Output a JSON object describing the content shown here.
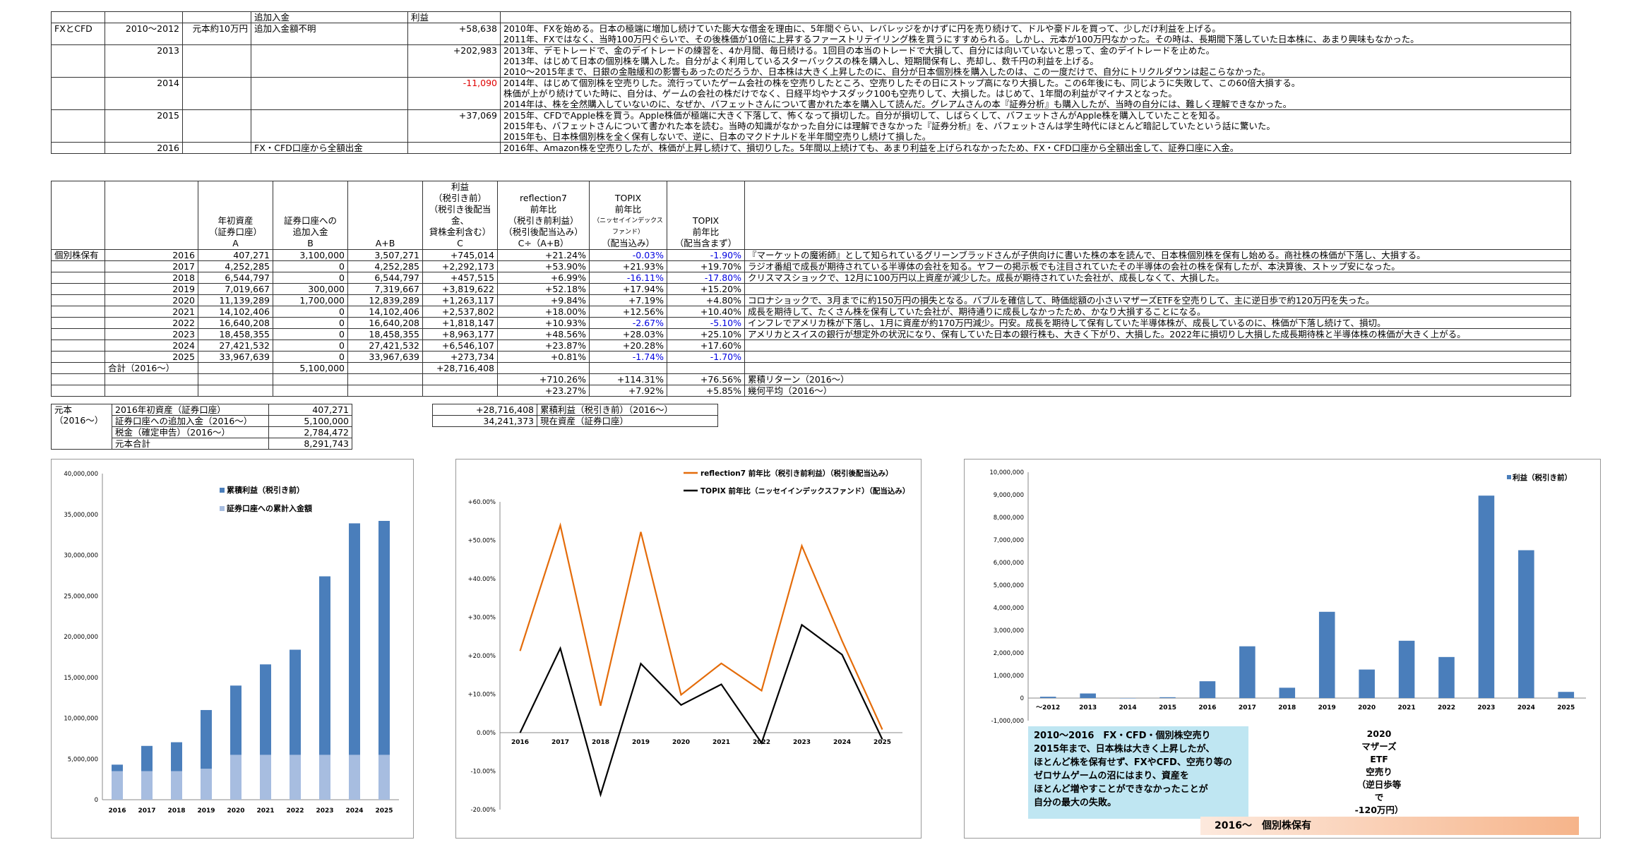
{
  "top_table": {
    "headers": {
      "add_money": "追加入金",
      "profit": "利益"
    },
    "rows": [
      {
        "label": "FXとCFD",
        "period": "2010～2012",
        "capital": "元本約10万円",
        "add": "追加入金額不明",
        "profit": "+58,638",
        "neg": false,
        "notes": [
          "2010年、FXを始める。日本の極端に増加し続けていた膨大な借金を理由に、5年間ぐらい、レバレッジをかけずに円を売り続けて、ドルや豪ドルを買って、少しだけ利益を上げる。",
          "2011年、FXではなく、当時100万円ぐらいで、その後株価が10倍に上昇するファーストリテイリング株を買うにすすめられる。しかし、元本が100万円なかった。その時は、長期間下落していた日本株に、あまり興味もなかった。"
        ]
      },
      {
        "label": "",
        "period": "2013",
        "capital": "",
        "add": "",
        "profit": "+202,983",
        "neg": false,
        "notes": [
          "2013年、デモトレードで、金のデイトレードの練習を、4か月間、毎日続ける。1回目の本当のトレードで大損して、自分には向いていないと思って、金のデイトレードを止めた。",
          "2013年、はじめて日本の個別株を購入した。自分がよく利用しているスターバックスの株を購入し、短期間保有し、売却し、数千円の利益を上げる。",
          "2010～2015年まで、日銀の金融緩和の影響もあったのだろうか、日本株は大きく上昇したのに、自分が日本個別株を購入したのは、この一度だけで、自分にトリクルダウンは起こらなかった。"
        ]
      },
      {
        "label": "",
        "period": "2014",
        "capital": "",
        "add": "",
        "profit": "-11,090",
        "neg": true,
        "notes": [
          "2014年、はじめて個別株を空売りした。流行っていたゲーム会社の株を空売りしたところ、空売りしたその日にストップ高になり大損した。この6年後にも、同じように失敗して、この60倍大損する。",
          "株価が上がり続けていた時に、自分は、ゲームの会社の株だけでなく、日経平均やナスダック100も空売りして、大損した。はじめて、1年間の利益がマイナスとなった。",
          "2014年は、株を全然購入していないのに、なぜか、バフェットさんについて書かれた本を購入して読んだ。グレアムさんの本『証券分析』も購入したが、当時の自分には、難しく理解できなかった。"
        ]
      },
      {
        "label": "",
        "period": "2015",
        "capital": "",
        "add": "",
        "profit": "+37,069",
        "neg": false,
        "notes": [
          "2015年、CFDでApple株を買う。Apple株価が極端に大きく下落して、怖くなって損切した。自分が損切して、しばらくして、バフェットさんがApple株を購入していたことを知る。",
          "2015年も、バフェットさんについて書かれた本を読む。当時の知識がなかった自分には理解できなかった『証券分析』を、バフェットさんは学生時代にほとんど暗記していたという話に驚いた。",
          "2015年も、日本株個別株を全く保有しないで、逆に、日本のマクドナルドを半年間空売りし続けて損した。"
        ]
      },
      {
        "label": "",
        "period": "2016",
        "capital": "",
        "add": "FX・CFD口座から全額出金",
        "profit": "",
        "neg": false,
        "notes": [
          "2016年、Amazon株を空売りしたが、株価が上昇し続けて、損切りした。5年間以上続けても、あまり利益を上げられなかったため、FX・CFD口座から全額出金して、証券口座に入金。"
        ]
      }
    ]
  },
  "main_table": {
    "headers": {
      "a": [
        "年初資産",
        "（証券口座）",
        "A"
      ],
      "b": [
        "証券口座への",
        "追加入金",
        "B"
      ],
      "ab": [
        "A+B"
      ],
      "c": [
        "利益",
        "（税引き前）",
        "（税引き後配当金、",
        "貸株金利含む）",
        "C"
      ],
      "r7": [
        "reflection7",
        "前年比",
        "（税引き前利益）",
        "（税引後配当込み）",
        "C÷（A+B）"
      ],
      "tp1": [
        "TOPIX",
        "前年比",
        "（ニッセイインデックスファンド）",
        "（配当込み）"
      ],
      "tp2": [
        "TOPIX",
        "前年比",
        "",
        "（配当含まず）"
      ]
    },
    "section_label": "個別株保有",
    "rows": [
      {
        "year": "2016",
        "a": "407,271",
        "b": "3,100,000",
        "ab": "3,507,271",
        "c": "+745,014",
        "r7": "+21.24%",
        "tp1": "-0.03%",
        "tp2": "-1.90%",
        "note": "『マーケットの魔術師』として知られているグリーンブラッドさんが子供向けに書いた株の本を読んで、日本株個別株を保有し始める。商社株の株価が下落し、大損する。"
      },
      {
        "year": "2017",
        "a": "4,252,285",
        "b": "0",
        "ab": "4,252,285",
        "c": "+2,292,173",
        "r7": "+53.90%",
        "tp1": "+21.93%",
        "tp2": "+19.70%",
        "note": "ラジオ番組で成長が期待されている半導体の会社を知る。ヤフーの掲示板でも注目されていたその半導体の会社の株を保有したが、本決算後、ストップ安になった。"
      },
      {
        "year": "2018",
        "a": "6,544,797",
        "b": "0",
        "ab": "6,544,797",
        "c": "+457,515",
        "r7": "+6.99%",
        "tp1": "-16.11%",
        "tp2": "-17.80%",
        "note": "クリスマスショックで、12月に100万円以上資産が減少した。成長が期待されていた会社が、成長しなくて、大損した。"
      },
      {
        "year": "2019",
        "a": "7,019,667",
        "b": "300,000",
        "ab": "7,319,667",
        "c": "+3,819,622",
        "r7": "+52.18%",
        "tp1": "+17.94%",
        "tp2": "+15.20%",
        "note": ""
      },
      {
        "year": "2020",
        "a": "11,139,289",
        "b": "1,700,000",
        "ab": "12,839,289",
        "c": "+1,263,117",
        "r7": "+9.84%",
        "tp1": "+7.19%",
        "tp2": "+4.80%",
        "note": "コロナショックで、3月までに約150万円の損失となる。バブルを確信して、時価総額の小さいマザーズETFを空売りして、主に逆日歩で約120万円を失った。"
      },
      {
        "year": "2021",
        "a": "14,102,406",
        "b": "0",
        "ab": "14,102,406",
        "c": "+2,537,802",
        "r7": "+18.00%",
        "tp1": "+12.56%",
        "tp2": "+10.40%",
        "note": "成長を期待して、たくさん株を保有していた会社が、期待通りに成長しなかったため、かなり大損することになる。"
      },
      {
        "year": "2022",
        "a": "16,640,208",
        "b": "0",
        "ab": "16,640,208",
        "c": "+1,818,147",
        "r7": "+10.93%",
        "tp1": "-2.67%",
        "tp2": "-5.10%",
        "note": "インフレでアメリカ株が下落し、1月に資産が約170万円減少。円安。成長を期待して保有していた半導体株が、成長しているのに、株価が下落し続けて、損切。"
      },
      {
        "year": "2023",
        "a": "18,458,355",
        "b": "0",
        "ab": "18,458,355",
        "c": "+8,963,177",
        "r7": "+48.56%",
        "tp1": "+28.03%",
        "tp2": "+25.10%",
        "note": "アメリカとスイスの銀行が想定外の状況になり、保有していた日本の銀行株も、大きく下がり、大損した。2022年に損切りし大損した成長期待株と半導体株の株価が大きく上がる。"
      },
      {
        "year": "2024",
        "a": "27,421,532",
        "b": "0",
        "ab": "27,421,532",
        "c": "+6,546,107",
        "r7": "+23.87%",
        "tp1": "+20.28%",
        "tp2": "+17.60%",
        "note": ""
      },
      {
        "year": "2025",
        "a": "33,967,639",
        "b": "0",
        "ab": "33,967,639",
        "c": "+273,734",
        "r7": "+0.81%",
        "tp1": "-1.74%",
        "tp2": "-1.70%",
        "note": ""
      }
    ],
    "total": {
      "label": "合計（2016～）",
      "b": "5,100,000",
      "c": "+28,716,408"
    },
    "cumulative": {
      "r7": "+710.26%",
      "tp1": "+114.31%",
      "tp2": "+76.56%",
      "label": "累積リターン（2016～）"
    },
    "geomean": {
      "r7": "+23.27%",
      "tp1": "+7.92%",
      "tp2": "+5.85%",
      "label": "幾何平均（2016～）"
    }
  },
  "principal_table": {
    "label": [
      "元本",
      "（2016～）"
    ],
    "rows": [
      {
        "k": "2016年初資産（証券口座）",
        "v": "407,271"
      },
      {
        "k": "証券口座への追加入金（2016～）",
        "v": "5,100,000"
      },
      {
        "k": "税金（確定申告）（2016～）",
        "v": "2,784,472"
      },
      {
        "k": "元本合計",
        "v": "8,291,743"
      }
    ]
  },
  "summary_table": {
    "rows": [
      {
        "v": "+28,716,408",
        "k": "累積利益（税引き前）（2016～）"
      },
      {
        "v": "34,241,373",
        "k": "現在資産（証券口座）"
      }
    ]
  },
  "colors": {
    "bar_dark": "#4a7ebb",
    "bar_light": "#a7bde0",
    "orange": "#e46c0a",
    "black": "#000000",
    "bubble": "#bfe6f2",
    "negative": "#e00000",
    "blue_text": "#0000e0"
  },
  "chart_data": [
    {
      "type": "bar",
      "categories": [
        "2016",
        "2017",
        "2018",
        "2019",
        "2020",
        "2021",
        "2022",
        "2023",
        "2024",
        "2025"
      ],
      "series": [
        {
          "name": "累積利益（税引き前）",
          "values": [
            4300000,
            6600000,
            7050000,
            11000000,
            14000000,
            16600000,
            18400000,
            27400000,
            33900000,
            34200000
          ]
        },
        {
          "name": "証券口座への累計入金額",
          "values": [
            3507271,
            3507271,
            3507271,
            3807271,
            5507271,
            5507271,
            5507271,
            5507271,
            5507271,
            5507271
          ]
        }
      ],
      "yticks": [
        "0",
        "5,000,000",
        "10,000,000",
        "15,000,000",
        "20,000,000",
        "25,000,000",
        "30,000,000",
        "35,000,000",
        "40,000,000"
      ],
      "ylim": [
        0,
        40000000
      ],
      "legend": "top-left"
    },
    {
      "type": "line",
      "categories": [
        "2016",
        "2017",
        "2018",
        "2019",
        "2020",
        "2021",
        "2022",
        "2023",
        "2024",
        "2025"
      ],
      "series": [
        {
          "name": "reflection7 前年比（税引き前利益）（税引後配当込み）",
          "color": "#e46c0a",
          "values": [
            21.24,
            53.9,
            6.99,
            52.18,
            9.84,
            18.0,
            10.93,
            48.56,
            23.87,
            0.81
          ]
        },
        {
          "name": "TOPIX 前年比（ニッセイインデックスファンド）（配当込み）",
          "color": "#000000",
          "values": [
            -0.03,
            21.93,
            -16.11,
            17.94,
            7.19,
            12.56,
            -2.67,
            28.03,
            20.28,
            -1.74
          ]
        }
      ],
      "yticks": [
        "-20.00%",
        "-10.00%",
        "0.00%",
        "+10.00%",
        "+20.00%",
        "+30.00%",
        "+40.00%",
        "+50.00%",
        "+60.00%"
      ],
      "ylim": [
        -20,
        60
      ],
      "legend": "top-right"
    },
    {
      "type": "bar",
      "categories": [
        "～2012",
        "2013",
        "2014",
        "2015",
        "2016",
        "2017",
        "2018",
        "2019",
        "2020",
        "2021",
        "2022",
        "2023",
        "2024",
        "2025"
      ],
      "series": [
        {
          "name": "利益（税引き前）",
          "values": [
            58638,
            202983,
            -11090,
            37069,
            745014,
            2292173,
            457515,
            3819622,
            1263117,
            2537802,
            1818147,
            8963177,
            6546107,
            273734
          ]
        }
      ],
      "yticks": [
        "-1,000,000",
        "0",
        "1,000,000",
        "2,000,000",
        "3,000,000",
        "4,000,000",
        "5,000,000",
        "6,000,000",
        "7,000,000",
        "8,000,000",
        "9,000,000",
        "10,000,000"
      ],
      "ylim": [
        -1000000,
        10000000
      ],
      "legend": "top-right",
      "annotations": {
        "bubble_left": [
          "2010～2016　FX・CFD・個別株空売り",
          "2015年まで、日本株は大きく上昇したが、",
          "ほとんど株を保有せず、FXやCFD、空売り等の",
          "ゼロサムゲームの沼にはまり、資産を",
          "ほとんど増やすことができなかったことが",
          "自分の最大の失敗。"
        ],
        "bubble_right": [
          "2020",
          "マザーズ",
          "ETF",
          "空売り",
          "（逆日歩等で",
          "-120万円）"
        ],
        "bottom_bar": "2016～　個別株保有"
      }
    }
  ]
}
